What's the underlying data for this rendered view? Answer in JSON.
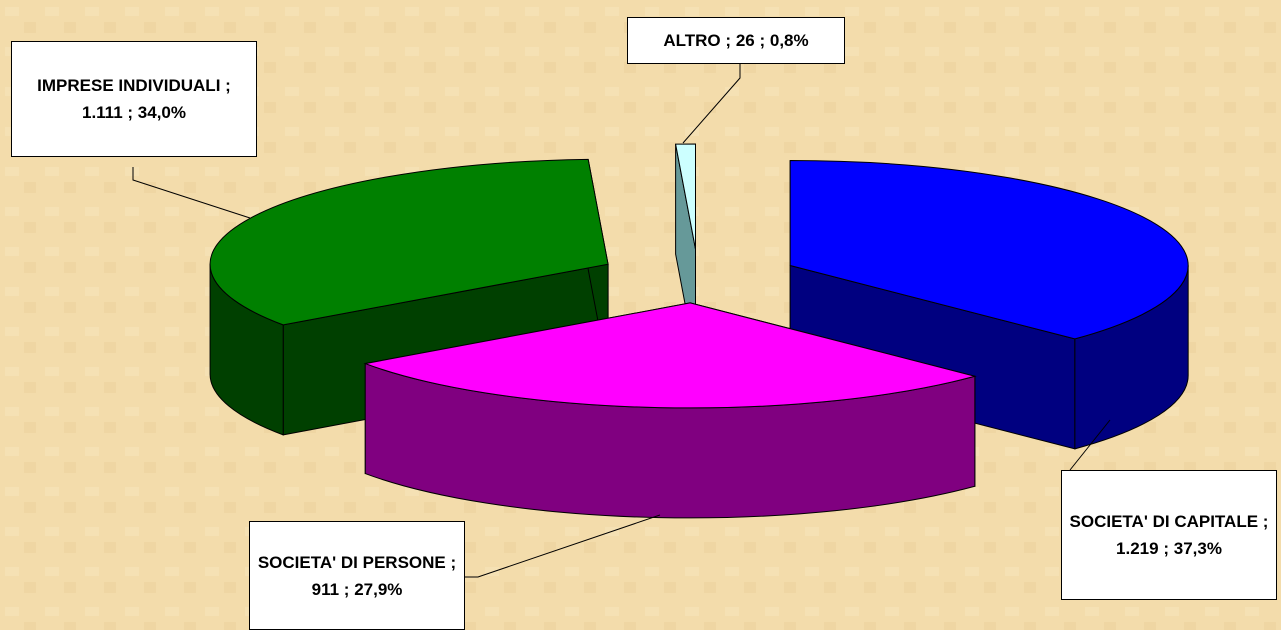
{
  "chart_data": {
    "type": "pie3d",
    "categories": [
      "SOCIETA' DI CAPITALE",
      "SOCIETA' DI PERSONE",
      "IMPRESE INDIVIDUALI",
      "ALTRO"
    ],
    "values": [
      1219,
      911,
      1111,
      26
    ],
    "value_labels": [
      "1.219",
      "911",
      "1.111",
      "26"
    ],
    "percentages": [
      37.3,
      27.9,
      34.0,
      0.8
    ],
    "percentage_labels": [
      "37,3%",
      "27,9%",
      "34,0%",
      "0,8%"
    ],
    "label_separator": ";",
    "colors": [
      "#0000ff",
      "#ff00ff",
      "#008000",
      "#ccffff"
    ],
    "side_colors": [
      "#000080",
      "#800080",
      "#004000",
      "#669999"
    ]
  }
}
